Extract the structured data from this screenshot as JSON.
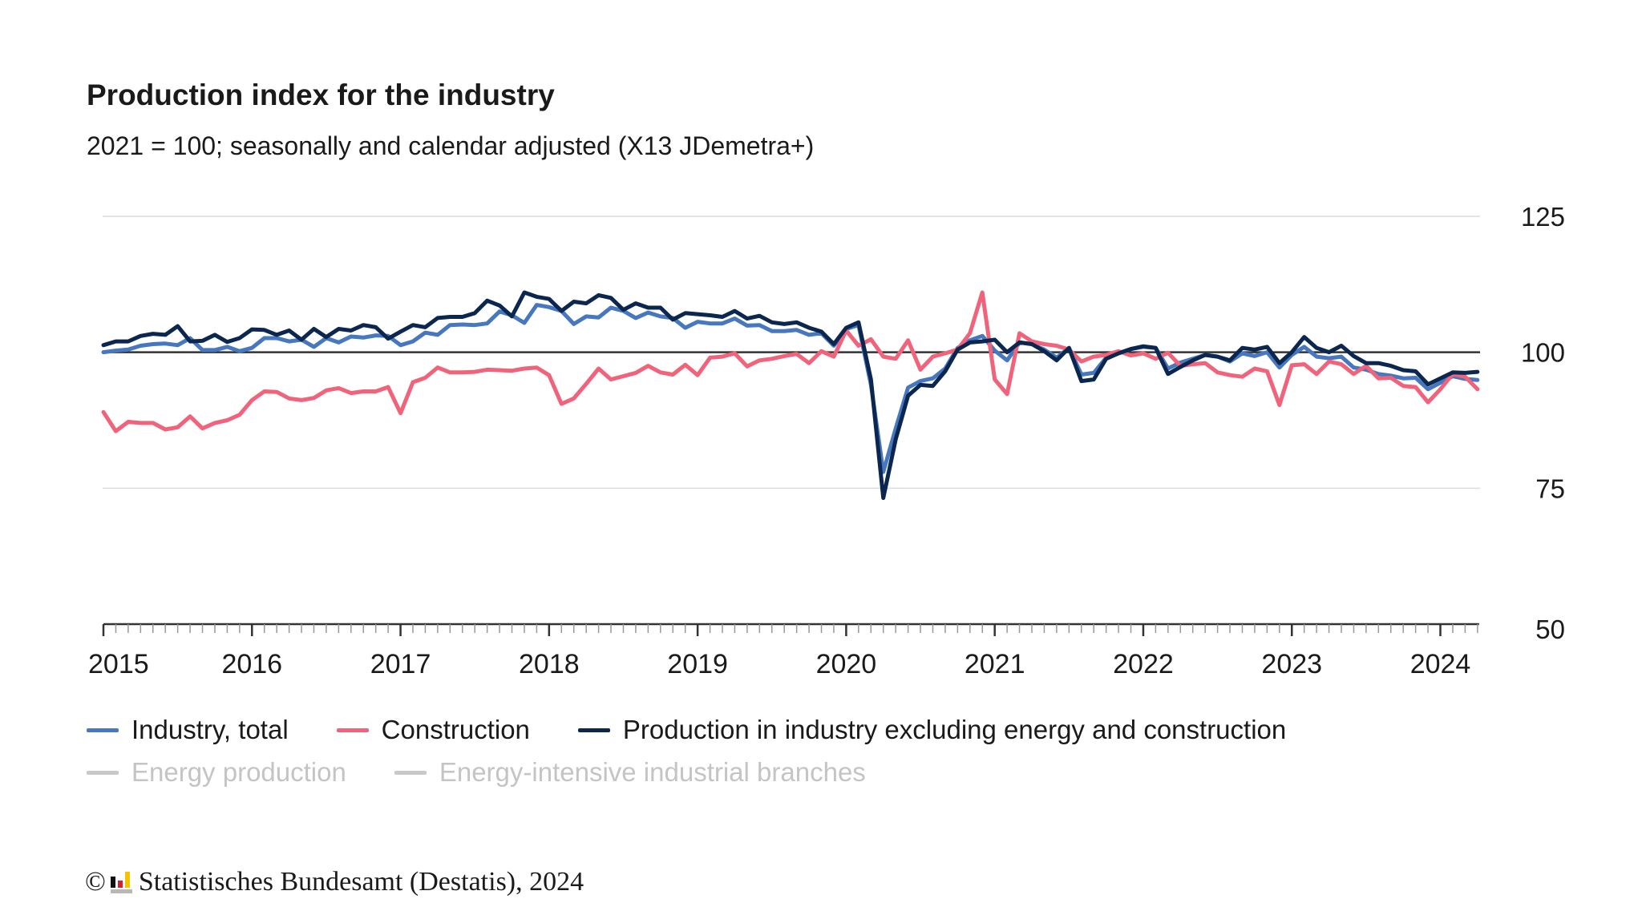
{
  "chart_data": {
    "type": "line",
    "title": "Production index for the industry",
    "subtitle": "2021 = 100; seasonally and calendar adjusted (X13 JDemetra+)",
    "xlabel": "",
    "ylabel": "",
    "x_range": [
      "2015-01",
      "2024-04"
    ],
    "x_frequency": "monthly",
    "x_tick_labels": [
      "2015",
      "2016",
      "2017",
      "2018",
      "2019",
      "2020",
      "2021",
      "2022",
      "2023",
      "2024"
    ],
    "y_tick_labels": [
      "125",
      "100",
      "75",
      "50"
    ],
    "ylim": [
      50,
      125
    ],
    "yticks": [
      50,
      75,
      100,
      125
    ],
    "reference_line": 100,
    "grid": "horizontal",
    "legend_position": "bottom",
    "series": [
      {
        "name": "Industry, total",
        "color": "#4677bf",
        "visible": true,
        "values": [
          100.0,
          100.3,
          100.5,
          101.2,
          101.5,
          101.6,
          101.3,
          102.6,
          100.4,
          100.4,
          101.0,
          100.2,
          100.8,
          102.6,
          102.6,
          102.0,
          102.3,
          101.0,
          102.6,
          101.8,
          102.9,
          102.7,
          103.1,
          103.0,
          101.3,
          102.0,
          103.6,
          103.2,
          105.0,
          105.1,
          105.0,
          105.3,
          107.5,
          106.8,
          105.4,
          108.7,
          108.3,
          107.6,
          105.2,
          106.6,
          106.4,
          108.2,
          107.6,
          106.3,
          107.3,
          106.6,
          106.3,
          104.5,
          105.6,
          105.3,
          105.3,
          106.2,
          104.9,
          105.0,
          103.9,
          103.9,
          104.1,
          103.2,
          103.5,
          101.2,
          104.3,
          105.0,
          94.0,
          78.0,
          86.0,
          93.5,
          94.7,
          95.2,
          97.0,
          100.8,
          102.2,
          103.0,
          100.3,
          98.5,
          101.8,
          101.5,
          100.5,
          99.0,
          100.8,
          95.9,
          96.2,
          99.0,
          99.8,
          100.6,
          101.0,
          100.8,
          97.0,
          98.1,
          98.8,
          99.5,
          99.2,
          98.3,
          99.8,
          99.3,
          100.0,
          97.2,
          99.5,
          101.0,
          99.2,
          98.9,
          99.2,
          97.2,
          96.8,
          96.0,
          95.7,
          95.2,
          95.3,
          93.2,
          94.4,
          95.6,
          95.1,
          94.9
        ]
      },
      {
        "name": "Construction",
        "color": "#f0637a",
        "visible": true,
        "values": [
          89.0,
          85.5,
          87.2,
          87.0,
          87.0,
          85.8,
          86.2,
          88.2,
          86.0,
          87.0,
          87.5,
          88.5,
          91.2,
          92.8,
          92.7,
          91.5,
          91.2,
          91.6,
          93.0,
          93.4,
          92.5,
          92.8,
          92.8,
          93.6,
          88.8,
          94.5,
          95.3,
          97.2,
          96.3,
          96.3,
          96.4,
          96.8,
          96.7,
          96.6,
          97.0,
          97.2,
          95.8,
          90.5,
          91.5,
          94.2,
          97.0,
          95.0,
          95.6,
          96.2,
          97.5,
          96.3,
          95.9,
          97.7,
          95.8,
          99.0,
          99.2,
          99.8,
          97.4,
          98.5,
          98.8,
          99.3,
          99.7,
          98.0,
          100.2,
          99.2,
          104.0,
          101.2,
          102.4,
          99.2,
          98.8,
          102.2,
          96.8,
          99.2,
          99.8,
          100.5,
          103.5,
          111.0,
          95.0,
          92.3,
          103.5,
          102.0,
          101.5,
          101.2,
          100.5,
          98.3,
          99.2,
          99.5,
          100.2,
          99.4,
          99.8,
          98.8,
          99.9,
          97.5,
          97.8,
          98.0,
          96.3,
          95.8,
          95.5,
          97.0,
          96.5,
          90.3,
          97.6,
          97.8,
          96.0,
          98.3,
          97.8,
          96.0,
          97.5,
          95.2,
          95.3,
          93.8,
          93.6,
          90.8,
          93.2,
          96.0,
          95.5,
          93.2
        ]
      },
      {
        "name": "Production in industry excluding energy and construction",
        "color": "#0b2750",
        "visible": true,
        "values": [
          101.3,
          102.0,
          102.0,
          103.0,
          103.4,
          103.2,
          104.8,
          102.0,
          102.1,
          103.2,
          101.9,
          102.6,
          104.2,
          104.1,
          103.2,
          104.0,
          102.3,
          104.3,
          102.8,
          104.3,
          104.0,
          105.0,
          104.6,
          102.5,
          103.8,
          105.0,
          104.6,
          106.3,
          106.5,
          106.5,
          107.2,
          109.5,
          108.6,
          106.6,
          111.0,
          110.2,
          109.8,
          107.6,
          109.3,
          109.0,
          110.5,
          110.0,
          107.8,
          109.0,
          108.2,
          108.2,
          106.0,
          107.2,
          107.0,
          106.8,
          106.5,
          107.6,
          106.2,
          106.7,
          105.5,
          105.2,
          105.5,
          104.5,
          103.8,
          101.5,
          104.5,
          105.5,
          95.0,
          73.2,
          84.0,
          92.0,
          94.0,
          93.8,
          96.5,
          100.5,
          101.8,
          102.0,
          102.3,
          100.0,
          101.8,
          101.5,
          100.2,
          98.5,
          100.8,
          94.7,
          95.0,
          98.8,
          99.8,
          100.6,
          101.1,
          100.8,
          96.0,
          97.3,
          98.5,
          99.5,
          99.2,
          98.5,
          100.8,
          100.5,
          101.0,
          98.0,
          100.0,
          102.8,
          100.8,
          100.0,
          101.2,
          99.3,
          98.0,
          98.0,
          97.5,
          96.7,
          96.5,
          94.1,
          95.2,
          96.3,
          96.2,
          96.4
        ]
      },
      {
        "name": "Energy production",
        "color": "#c8c8c8",
        "visible": false,
        "values": []
      },
      {
        "name": "Energy-intensive industrial branches",
        "color": "#c8c8c8",
        "visible": false,
        "values": []
      }
    ]
  },
  "legend": {
    "items": [
      "Industry, total",
      "Construction",
      "Production in industry excluding energy and construction"
    ],
    "hidden_items": [
      "Energy production",
      "Energy-intensive industrial branches"
    ]
  },
  "footer": {
    "copyright_symbol": "©",
    "source": "Statistisches Bundesamt (Destatis), 2024",
    "logo_icon": "destatis-logo"
  }
}
